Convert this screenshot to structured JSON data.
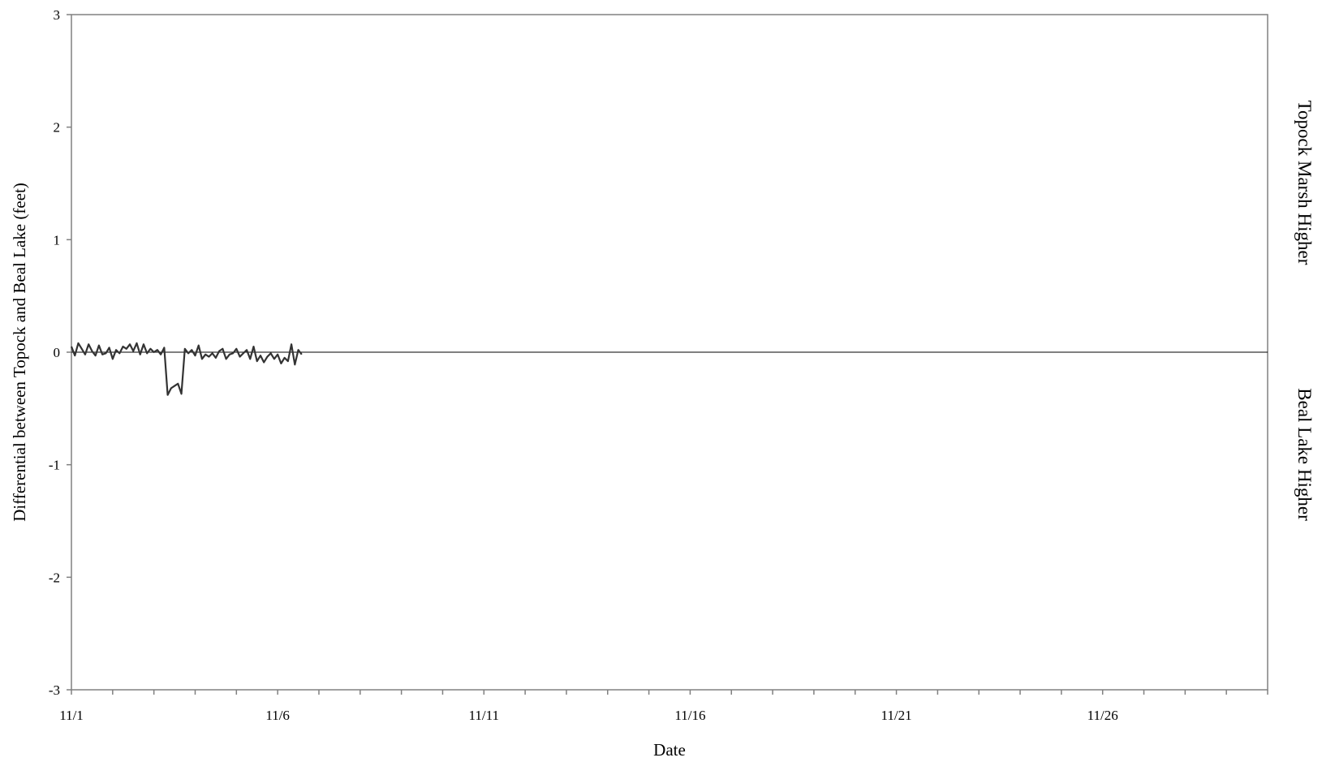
{
  "chart_data": {
    "type": "line",
    "title": "",
    "xlabel": "Date",
    "ylabel": "Differential between Topock and Beal Lake (feet)",
    "xlim": [
      "2000-11-01",
      "2000-11-30"
    ],
    "ylim": [
      -3,
      3
    ],
    "x_ticks": [
      {
        "date": "2000-11-01",
        "label": "11/1"
      },
      {
        "date": "2000-11-06",
        "label": "11/6"
      },
      {
        "date": "2000-11-11",
        "label": "11/11"
      },
      {
        "date": "2000-11-16",
        "label": "11/16"
      },
      {
        "date": "2000-11-21",
        "label": "11/21"
      },
      {
        "date": "2000-11-26",
        "label": "11/26"
      }
    ],
    "y_ticks": [
      {
        "value": 3,
        "label": "3"
      },
      {
        "value": 2,
        "label": "2"
      },
      {
        "value": 1,
        "label": "1"
      },
      {
        "value": 0,
        "label": "0"
      },
      {
        "value": -1,
        "label": "-1"
      },
      {
        "value": -2,
        "label": "-2"
      },
      {
        "value": -3,
        "label": "-3"
      }
    ],
    "right_labels": {
      "upper": "Topock Marsh Higher",
      "lower": "Beal Lake Higher"
    },
    "reference_line": 0,
    "grid": false,
    "legend": "none",
    "series": [
      {
        "color": "#333333",
        "x": [
          "2000-11-01T00:00",
          "2000-11-01T02:00",
          "2000-11-01T04:00",
          "2000-11-01T06:00",
          "2000-11-01T08:00",
          "2000-11-01T10:00",
          "2000-11-01T12:00",
          "2000-11-01T14:00",
          "2000-11-01T16:00",
          "2000-11-01T18:00",
          "2000-11-01T20:00",
          "2000-11-01T22:00",
          "2000-11-02T00:00",
          "2000-11-02T02:00",
          "2000-11-02T04:00",
          "2000-11-02T06:00",
          "2000-11-02T08:00",
          "2000-11-02T10:00",
          "2000-11-02T12:00",
          "2000-11-02T14:00",
          "2000-11-02T16:00",
          "2000-11-02T18:00",
          "2000-11-02T20:00",
          "2000-11-02T22:00",
          "2000-11-03T00:00",
          "2000-11-03T02:00",
          "2000-11-03T04:00",
          "2000-11-03T06:00",
          "2000-11-03T08:00",
          "2000-11-03T10:00",
          "2000-11-03T12:00",
          "2000-11-03T14:00",
          "2000-11-03T16:00",
          "2000-11-03T18:00",
          "2000-11-03T20:00",
          "2000-11-03T22:00",
          "2000-11-04T00:00",
          "2000-11-04T02:00",
          "2000-11-04T04:00",
          "2000-11-04T06:00",
          "2000-11-04T08:00",
          "2000-11-04T10:00",
          "2000-11-04T12:00",
          "2000-11-04T14:00",
          "2000-11-04T16:00",
          "2000-11-04T18:00",
          "2000-11-04T20:00",
          "2000-11-04T22:00",
          "2000-11-05T00:00",
          "2000-11-05T02:00",
          "2000-11-05T04:00",
          "2000-11-05T06:00",
          "2000-11-05T08:00",
          "2000-11-05T10:00",
          "2000-11-05T12:00",
          "2000-11-05T14:00",
          "2000-11-05T16:00",
          "2000-11-05T18:00",
          "2000-11-05T20:00",
          "2000-11-05T22:00",
          "2000-11-06T00:00",
          "2000-11-06T02:00",
          "2000-11-06T04:00",
          "2000-11-06T06:00",
          "2000-11-06T08:00",
          "2000-11-06T10:00",
          "2000-11-06T12:00",
          "2000-11-06T14:00"
        ],
        "values": [
          0.05,
          -0.03,
          0.08,
          0.03,
          -0.02,
          0.07,
          0.01,
          -0.03,
          0.06,
          -0.02,
          -0.01,
          0.04,
          -0.06,
          0.02,
          -0.01,
          0.05,
          0.03,
          0.07,
          0.01,
          0.08,
          -0.02,
          0.07,
          -0.01,
          0.03,
          0.0,
          0.02,
          -0.02,
          0.04,
          -0.38,
          -0.32,
          -0.3,
          -0.28,
          -0.37,
          0.03,
          -0.01,
          0.02,
          -0.03,
          0.06,
          -0.06,
          -0.02,
          -0.04,
          -0.01,
          -0.05,
          0.01,
          0.03,
          -0.06,
          -0.02,
          -0.01,
          0.03,
          -0.04,
          -0.01,
          0.02,
          -0.06,
          0.05,
          -0.08,
          -0.03,
          -0.09,
          -0.04,
          -0.01,
          -0.06,
          -0.02,
          -0.1,
          -0.05,
          -0.08,
          0.07,
          -0.11,
          0.02,
          -0.02
        ]
      }
    ]
  }
}
